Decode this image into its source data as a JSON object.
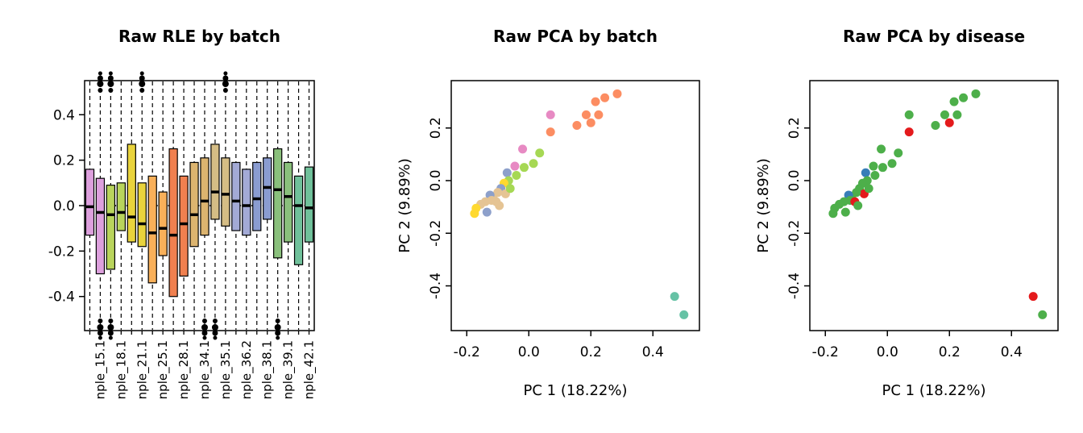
{
  "figure": {
    "background": "#ffffff"
  },
  "chart_data": [
    {
      "type": "boxplot",
      "title": "Raw RLE by batch",
      "ylim": [
        -0.55,
        0.55
      ],
      "yticks": [
        -0.4,
        -0.2,
        0,
        0.2,
        0.4
      ],
      "zero_line": true,
      "whisker_lo": -0.6,
      "whisker_hi": 0.6,
      "boxes": [
        {
          "label": "",
          "color": "#dda0dd",
          "med": -0.005,
          "q1": -0.13,
          "q3": 0.16,
          "out_top": false,
          "out_bot": false
        },
        {
          "label": "nple_15.1",
          "color": "#dda0dd",
          "med": -0.03,
          "q1": -0.3,
          "q3": 0.12,
          "out_top": true,
          "out_bot": true
        },
        {
          "label": "",
          "color": "#b9d45c",
          "med": -0.04,
          "q1": -0.28,
          "q3": 0.09,
          "out_top": true,
          "out_bot": true
        },
        {
          "label": "nple_18.1",
          "color": "#b9d45c",
          "med": -0.03,
          "q1": -0.11,
          "q3": 0.1,
          "out_top": false,
          "out_bot": false
        },
        {
          "label": "",
          "color": "#e9d33c",
          "med": -0.05,
          "q1": -0.16,
          "q3": 0.27,
          "out_top": false,
          "out_bot": false
        },
        {
          "label": "nple_21.1",
          "color": "#e9d33c",
          "med": -0.08,
          "q1": -0.18,
          "q3": 0.1,
          "out_top": true,
          "out_bot": false
        },
        {
          "label": "",
          "color": "#f9b059",
          "med": -0.12,
          "q1": -0.34,
          "q3": 0.13,
          "out_top": false,
          "out_bot": false
        },
        {
          "label": "nple_25.1",
          "color": "#f9b059",
          "med": -0.1,
          "q1": -0.22,
          "q3": 0.06,
          "out_top": false,
          "out_bot": false
        },
        {
          "label": "",
          "color": "#f0804f",
          "med": -0.13,
          "q1": -0.4,
          "q3": 0.25,
          "out_top": false,
          "out_bot": false
        },
        {
          "label": "nple_28.1",
          "color": "#f0804f",
          "med": -0.08,
          "q1": -0.31,
          "q3": 0.13,
          "out_top": false,
          "out_bot": false
        },
        {
          "label": "",
          "color": "#dcb46f",
          "med": -0.04,
          "q1": -0.18,
          "q3": 0.19,
          "out_top": false,
          "out_bot": false
        },
        {
          "label": "nple_34.1",
          "color": "#dcb46f",
          "med": 0.02,
          "q1": -0.13,
          "q3": 0.21,
          "out_top": false,
          "out_bot": true
        },
        {
          "label": "",
          "color": "#d5bd85",
          "med": 0.06,
          "q1": -0.06,
          "q3": 0.27,
          "out_top": false,
          "out_bot": true
        },
        {
          "label": "nple_35.1",
          "color": "#d5bd85",
          "med": 0.05,
          "q1": -0.09,
          "q3": 0.21,
          "out_top": true,
          "out_bot": false
        },
        {
          "label": "",
          "color": "#a3aad6",
          "med": 0.02,
          "q1": -0.11,
          "q3": 0.19,
          "out_top": false,
          "out_bot": false
        },
        {
          "label": "nple_36.2",
          "color": "#a3aad6",
          "med": 0.0,
          "q1": -0.13,
          "q3": 0.16,
          "out_top": false,
          "out_bot": false
        },
        {
          "label": "",
          "color": "#8a9cd0",
          "med": 0.03,
          "q1": -0.11,
          "q3": 0.19,
          "out_top": false,
          "out_bot": false
        },
        {
          "label": "nple_38.1",
          "color": "#8a9cd0",
          "med": 0.08,
          "q1": -0.06,
          "q3": 0.21,
          "out_top": false,
          "out_bot": false
        },
        {
          "label": "",
          "color": "#8ac07c",
          "med": 0.07,
          "q1": -0.23,
          "q3": 0.25,
          "out_top": false,
          "out_bot": true
        },
        {
          "label": "nple_39.1",
          "color": "#8ac07c",
          "med": 0.04,
          "q1": -0.16,
          "q3": 0.19,
          "out_top": false,
          "out_bot": false
        },
        {
          "label": "",
          "color": "#70c19b",
          "med": 0.0,
          "q1": -0.26,
          "q3": 0.13,
          "out_top": false,
          "out_bot": false
        },
        {
          "label": "nple_42.1",
          "color": "#70c19b",
          "med": -0.01,
          "q1": -0.16,
          "q3": 0.17,
          "out_top": false,
          "out_bot": false
        }
      ]
    },
    {
      "type": "scatter",
      "title": "Raw PCA by batch",
      "xlabel": "PC 1 (18.22%)",
      "ylabel": "PC 2 (9.89%)",
      "xlim": [
        -0.25,
        0.55
      ],
      "ylim": [
        -0.57,
        0.38
      ],
      "xticks": [
        -0.2,
        0,
        0.2,
        0.4
      ],
      "yticks": [
        -0.4,
        -0.2,
        0,
        0.2
      ],
      "color_field": "batch"
    },
    {
      "type": "scatter",
      "title": "Raw PCA by disease",
      "xlabel": "PC 1 (18.22%)",
      "ylabel": "PC 2 (9.89%)",
      "xlim": [
        -0.25,
        0.55
      ],
      "ylim": [
        -0.57,
        0.38
      ],
      "xticks": [
        -0.2,
        0,
        0.2,
        0.4
      ],
      "yticks": [
        -0.4,
        -0.2,
        0,
        0.2
      ],
      "color_field": "disease"
    }
  ],
  "points": [
    {
      "x": 0.47,
      "y": -0.44,
      "batch": "teal",
      "disease": "red"
    },
    {
      "x": 0.5,
      "y": -0.51,
      "batch": "teal",
      "disease": "green"
    },
    {
      "x": 0.285,
      "y": 0.33,
      "batch": "orange",
      "disease": "green"
    },
    {
      "x": 0.245,
      "y": 0.315,
      "batch": "orange",
      "disease": "green"
    },
    {
      "x": 0.215,
      "y": 0.3,
      "batch": "orange",
      "disease": "green"
    },
    {
      "x": 0.225,
      "y": 0.25,
      "batch": "orange",
      "disease": "green"
    },
    {
      "x": 0.185,
      "y": 0.25,
      "batch": "orange",
      "disease": "green"
    },
    {
      "x": 0.2,
      "y": 0.22,
      "batch": "orange",
      "disease": "red"
    },
    {
      "x": 0.155,
      "y": 0.21,
      "batch": "orange",
      "disease": "green"
    },
    {
      "x": 0.07,
      "y": 0.25,
      "batch": "pink",
      "disease": "green"
    },
    {
      "x": 0.07,
      "y": 0.185,
      "batch": "orange",
      "disease": "red"
    },
    {
      "x": -0.02,
      "y": 0.12,
      "batch": "pink",
      "disease": "green"
    },
    {
      "x": 0.035,
      "y": 0.105,
      "batch": "green",
      "disease": "green"
    },
    {
      "x": 0.015,
      "y": 0.065,
      "batch": "green",
      "disease": "green"
    },
    {
      "x": -0.015,
      "y": 0.05,
      "batch": "green",
      "disease": "green"
    },
    {
      "x": -0.045,
      "y": 0.055,
      "batch": "pink",
      "disease": "green"
    },
    {
      "x": -0.04,
      "y": 0.02,
      "batch": "green",
      "disease": "green"
    },
    {
      "x": -0.07,
      "y": 0.03,
      "batch": "blue",
      "disease": "blue"
    },
    {
      "x": -0.065,
      "y": 0.0,
      "batch": "green",
      "disease": "green"
    },
    {
      "x": -0.08,
      "y": -0.01,
      "batch": "yellow",
      "disease": "green"
    },
    {
      "x": -0.09,
      "y": -0.03,
      "batch": "blue",
      "disease": "green"
    },
    {
      "x": -0.075,
      "y": -0.05,
      "batch": "tan",
      "disease": "red"
    },
    {
      "x": -0.1,
      "y": -0.045,
      "batch": "tan",
      "disease": "green"
    },
    {
      "x": -0.115,
      "y": -0.06,
      "batch": "tan",
      "disease": "green"
    },
    {
      "x": -0.125,
      "y": -0.055,
      "batch": "blue",
      "disease": "blue"
    },
    {
      "x": -0.12,
      "y": -0.075,
      "batch": "tan",
      "disease": "green"
    },
    {
      "x": -0.14,
      "y": -0.08,
      "batch": "tan",
      "disease": "green"
    },
    {
      "x": -0.155,
      "y": -0.09,
      "batch": "tan",
      "disease": "green"
    },
    {
      "x": -0.105,
      "y": -0.08,
      "batch": "tan",
      "disease": "red"
    },
    {
      "x": -0.17,
      "y": -0.105,
      "batch": "yellow",
      "disease": "green"
    },
    {
      "x": -0.175,
      "y": -0.125,
      "batch": "yellow",
      "disease": "green"
    },
    {
      "x": -0.135,
      "y": -0.12,
      "batch": "blue",
      "disease": "green"
    },
    {
      "x": -0.095,
      "y": -0.095,
      "batch": "tan",
      "disease": "green"
    },
    {
      "x": -0.06,
      "y": -0.03,
      "batch": "green",
      "disease": "green"
    }
  ],
  "palette": {
    "batch": {
      "teal": "#66c2a5",
      "orange": "#fc8d62",
      "blue": "#8da0cb",
      "pink": "#e78ac3",
      "green": "#a6d854",
      "yellow": "#ffd92f",
      "tan": "#e5c494"
    },
    "disease": {
      "green": "#4daf4a",
      "red": "#e41a1c",
      "blue": "#377eb8"
    }
  }
}
